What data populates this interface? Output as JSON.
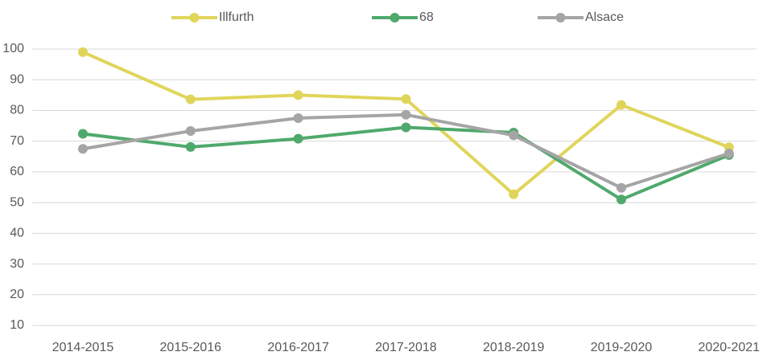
{
  "chart_data": {
    "type": "line",
    "categories": [
      "2014-2015",
      "2015-2016",
      "2016-2017",
      "2017-2018",
      "2018-2019",
      "2019-2020",
      "2020-2021"
    ],
    "series": [
      {
        "name": "Illfurth",
        "color": "#e0d55b",
        "values": [
          99,
          83.6,
          85,
          83.7,
          52.7,
          81.8,
          68
        ]
      },
      {
        "name": "68",
        "color": "#4fa96c",
        "values": [
          72.4,
          68.1,
          70.8,
          74.5,
          72.8,
          51,
          65.5
        ]
      },
      {
        "name": "Alsace",
        "color": "#a5a5a5",
        "values": [
          67.5,
          73.3,
          77.5,
          78.6,
          71.9,
          54.8,
          66
        ]
      }
    ],
    "ylim": [
      10,
      100
    ],
    "yticks": [
      10,
      20,
      30,
      40,
      50,
      60,
      70,
      80,
      90,
      100
    ],
    "grid": true,
    "legend": "top"
  }
}
